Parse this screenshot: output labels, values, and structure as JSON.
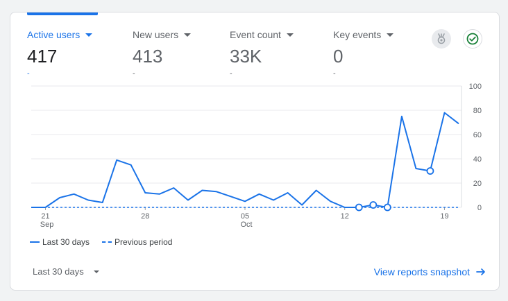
{
  "metrics": [
    {
      "label": "Active users",
      "value": "417",
      "delta": "-",
      "active": true
    },
    {
      "label": "New users",
      "value": "413",
      "delta": "-",
      "active": false
    },
    {
      "label": "Event count",
      "value": "33K",
      "delta": "-",
      "active": false
    },
    {
      "label": "Key events",
      "value": "0",
      "delta": "-",
      "active": false
    }
  ],
  "icons": {
    "insights": "insights-icon",
    "status": "check-circle-icon"
  },
  "colors": {
    "accent": "#1a73e8",
    "status_green": "#188038",
    "muted": "#5f6368",
    "gridline": "#e8eaed"
  },
  "legend": {
    "current": "Last 30 days",
    "previous": "Previous period"
  },
  "date_range": {
    "label": "Last 30 days"
  },
  "snapshot_link": {
    "label": "View reports snapshot"
  },
  "chart_data": {
    "type": "line",
    "ylim": [
      0,
      100
    ],
    "yticks": [
      "100",
      "80",
      "60",
      "40",
      "20",
      "0"
    ],
    "x_ticks": [
      {
        "i": 1,
        "day": "21",
        "month": "Sep"
      },
      {
        "i": 8,
        "day": "28",
        "month": ""
      },
      {
        "i": 15,
        "day": "05",
        "month": "Oct"
      },
      {
        "i": 22,
        "day": "12",
        "month": ""
      },
      {
        "i": 29,
        "day": "19",
        "month": ""
      }
    ],
    "series": [
      {
        "name": "Last 30 days",
        "style": "solid",
        "values": [
          0,
          0,
          8,
          11,
          6,
          4,
          39,
          35,
          12,
          11,
          16,
          6,
          14,
          13,
          9,
          5,
          11,
          6,
          12,
          2,
          14,
          5,
          0,
          0,
          2,
          0,
          75,
          32,
          30,
          78,
          69
        ],
        "markers": [
          23,
          24,
          25,
          28
        ]
      },
      {
        "name": "Previous period",
        "style": "dashed",
        "values": [
          0,
          0,
          0,
          0,
          0,
          0,
          0,
          0,
          0,
          0,
          0,
          0,
          0,
          0,
          0,
          0,
          0,
          0,
          0,
          0,
          0,
          0,
          0,
          0,
          0,
          0,
          0,
          0,
          0,
          0,
          0
        ]
      }
    ]
  }
}
